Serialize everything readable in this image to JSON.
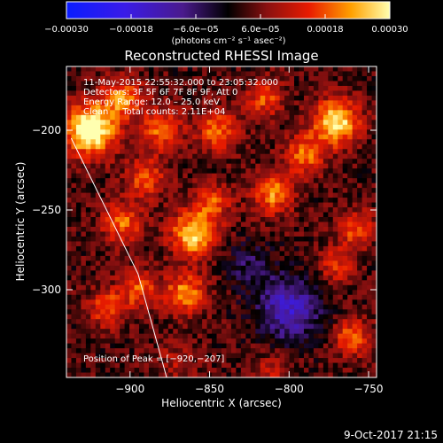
{
  "chart_data": {
    "type": "heatmap",
    "title": "Reconstructed RHESSI Image",
    "xlabel": "Heliocentric X (arcsec)",
    "ylabel": "Heliocentric Y (arcsec)",
    "xlim": [
      -940,
      -745
    ],
    "ylim": [
      -355,
      -160
    ],
    "x_ticks": [
      {
        "value": -900,
        "label": "−900"
      },
      {
        "value": -850,
        "label": "−850"
      },
      {
        "value": -800,
        "label": "−800"
      },
      {
        "value": -750,
        "label": "−750"
      }
    ],
    "y_ticks": [
      {
        "value": -200,
        "label": "−200"
      },
      {
        "value": -250,
        "label": "−250"
      },
      {
        "value": -300,
        "label": "−300"
      }
    ],
    "colorbar": {
      "min": -0.0003,
      "max": 0.0003,
      "unit_label": "(photons cm⁻² s⁻¹ asec⁻²)",
      "ticks": [
        {
          "value": -0.0003,
          "label": "−0.00030"
        },
        {
          "value": -0.00018,
          "label": "−0.00018"
        },
        {
          "value": -6e-05,
          "label": "−6.0e−05"
        },
        {
          "value": 6e-05,
          "label": "6.0e−05"
        },
        {
          "value": 0.00018,
          "label": "0.00018"
        },
        {
          "value": 0.0003,
          "label": "0.00030"
        }
      ]
    },
    "annotations": [
      "11‑May‑2015 22:55:32.000 to 23:05:32.000",
      "Detectors: 3F 5F 6F 7F 8F 9F, Att 0",
      "Energy Range: 12.0 – 25.0 keV",
      "Clean     Total counts: 2.11E+04"
    ],
    "peak_label": "Position of Peak = [−920,−207]",
    "peak": {
      "x": -920,
      "y": -207
    },
    "sources": [
      {
        "x": -925,
        "y": -200,
        "amp": 0.00032,
        "sigma": 11
      },
      {
        "x": -905,
        "y": -180,
        "amp": 0.00018,
        "sigma": 9
      },
      {
        "x": -880,
        "y": -200,
        "amp": 0.00016,
        "sigma": 9
      },
      {
        "x": -890,
        "y": -230,
        "amp": 0.00014,
        "sigma": 9
      },
      {
        "x": -905,
        "y": -258,
        "amp": 0.00016,
        "sigma": 9
      },
      {
        "x": -860,
        "y": -265,
        "amp": 0.00024,
        "sigma": 10
      },
      {
        "x": -848,
        "y": -245,
        "amp": 0.00014,
        "sigma": 8
      },
      {
        "x": -865,
        "y": -302,
        "amp": 0.00018,
        "sigma": 9
      },
      {
        "x": -895,
        "y": -300,
        "amp": 0.00014,
        "sigma": 9
      },
      {
        "x": -915,
        "y": -312,
        "amp": 0.00014,
        "sigma": 8
      },
      {
        "x": -845,
        "y": -200,
        "amp": 0.00016,
        "sigma": 9
      },
      {
        "x": -815,
        "y": -180,
        "amp": 0.00014,
        "sigma": 8
      },
      {
        "x": -810,
        "y": -240,
        "amp": 0.00018,
        "sigma": 9
      },
      {
        "x": -790,
        "y": -215,
        "amp": 0.00016,
        "sigma": 9
      },
      {
        "x": -770,
        "y": -195,
        "amp": 0.00026,
        "sigma": 10
      },
      {
        "x": -758,
        "y": -262,
        "amp": 0.00014,
        "sigma": 8
      },
      {
        "x": -770,
        "y": -285,
        "amp": 0.00012,
        "sigma": 8
      },
      {
        "x": -760,
        "y": -330,
        "amp": 0.00016,
        "sigma": 8
      },
      {
        "x": -800,
        "y": -312,
        "amp": -0.00018,
        "sigma": 14
      },
      {
        "x": -825,
        "y": -285,
        "amp": -8e-05,
        "sigma": 10
      },
      {
        "x": -870,
        "y": -345,
        "amp": 6e-05,
        "sigma": 10
      },
      {
        "x": -810,
        "y": -350,
        "amp": 8e-05,
        "sigma": 8
      }
    ],
    "limb_line": [
      [
        -937,
        -205
      ],
      [
        -895,
        -290
      ],
      [
        -877,
        -355
      ]
    ]
  },
  "footer": {
    "timestamp": "9‑Oct‑2017 21:15"
  },
  "colors": {
    "background": "#000000",
    "foreground": "#ffffff"
  }
}
